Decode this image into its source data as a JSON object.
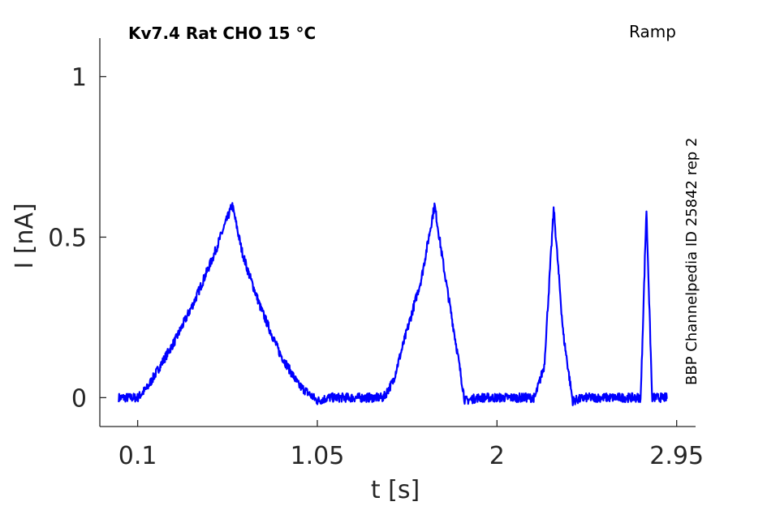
{
  "title": "Kv7.4  Rat  CHO  15 °C",
  "protocol": "Ramp",
  "source_note": "BBP Channelpedia ID 25842 rep 2",
  "colors": {
    "trace": "#0000ff",
    "axis": "#262626",
    "background": "#ffffff"
  },
  "chart_data": {
    "type": "line",
    "xlabel": "t [s]",
    "ylabel": "I [nA]",
    "xlim": [
      -0.1,
      3.05
    ],
    "ylim": [
      -0.09,
      1.12
    ],
    "xticks": [
      0.1,
      1.05,
      2,
      2.95
    ],
    "xtick_labels": [
      "0.1",
      "1.05",
      "2",
      "2.95"
    ],
    "yticks": [
      0,
      0.5,
      1
    ],
    "ytick_labels": [
      "0",
      "0.5",
      "1"
    ],
    "grid": false,
    "legend": "none",
    "series": [
      {
        "color": "#0000ff",
        "x": [
          0.0,
          0.05,
          0.1,
          0.15,
          0.2,
          0.3,
          0.4,
          0.5,
          0.6,
          0.65,
          0.68,
          0.75,
          0.85,
          0.95,
          1.05,
          1.11,
          1.2,
          1.3,
          1.4,
          1.45,
          1.6,
          1.67,
          1.72,
          1.78,
          1.83,
          1.9,
          2.0,
          2.1,
          2.2,
          2.25,
          2.3,
          2.35,
          2.4,
          2.47,
          2.6,
          2.7,
          2.76,
          2.79,
          2.82,
          2.85,
          2.9
        ],
        "y": [
          0.0,
          0.0,
          0.0,
          0.03,
          0.08,
          0.18,
          0.3,
          0.44,
          0.6,
          0.46,
          0.4,
          0.28,
          0.14,
          0.04,
          -0.01,
          0.0,
          0.0,
          0.0,
          0.0,
          0.05,
          0.37,
          0.6,
          0.4,
          0.18,
          -0.01,
          0.0,
          0.0,
          0.0,
          0.0,
          0.1,
          0.59,
          0.2,
          -0.01,
          0.0,
          0.0,
          0.0,
          0.0,
          0.59,
          0.0,
          0.0,
          0.0
        ]
      }
    ]
  }
}
